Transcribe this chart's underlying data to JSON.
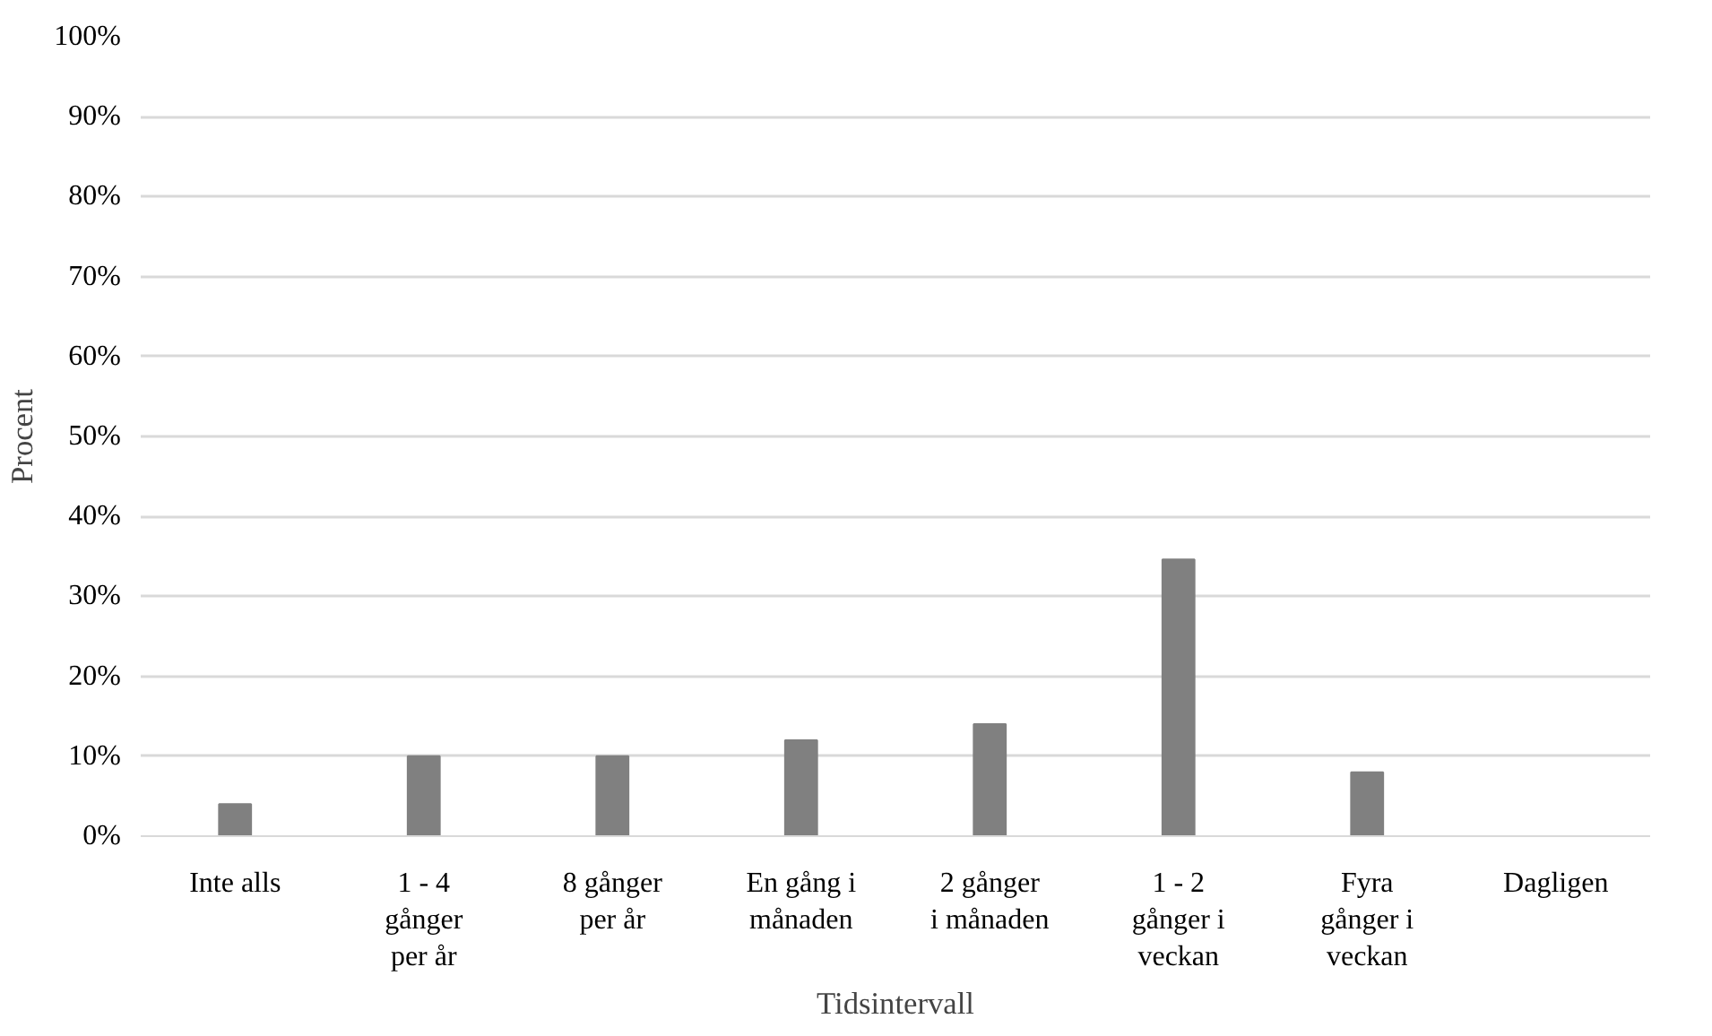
{
  "chart_data": {
    "type": "bar",
    "xlabel": "Tidsintervall",
    "ylabel": "Procent",
    "categories": [
      "Inte alls",
      "1 - 4 gånger per år",
      "8 gånger per år",
      "En gång i månaden",
      "2 gånger i månaden",
      "1 - 2 gånger i veckan",
      "Fyra gånger i veckan",
      "Dagligen"
    ],
    "values": [
      4,
      10,
      10,
      12,
      14,
      34.6,
      8,
      0
    ],
    "color": "#808080",
    "ylim": [
      0,
      100
    ],
    "yticks": [
      {
        "value": 0,
        "label": "0%"
      },
      {
        "value": 10,
        "label": "10%"
      },
      {
        "value": 20,
        "label": "20%"
      },
      {
        "value": 30,
        "label": "30%"
      },
      {
        "value": 40,
        "label": "40%"
      },
      {
        "value": 50,
        "label": "50%"
      },
      {
        "value": 60,
        "label": "60%"
      },
      {
        "value": 70,
        "label": "70%"
      },
      {
        "value": 80,
        "label": "80%"
      },
      {
        "value": 90,
        "label": "90%"
      },
      {
        "value": 100,
        "label": "100%"
      }
    ],
    "grid": "y"
  }
}
